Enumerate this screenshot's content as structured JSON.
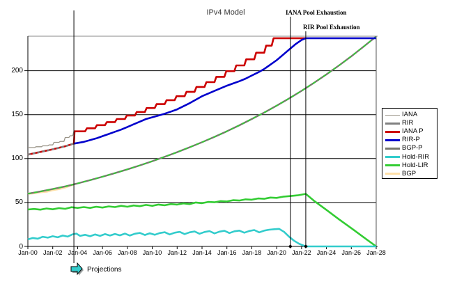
{
  "title": "IPv4 Model",
  "annotations": {
    "iana_exhaustion": "IANA Pool Exhaustion",
    "rir_exhaustion": "RIR Pool Exhaustion",
    "projections": "Projections"
  },
  "chart_data": {
    "type": "line",
    "title": "IPv4 Model",
    "xlabel": "",
    "ylabel": "",
    "x_unit": "years since Jan-2000",
    "xlim": [
      0,
      28
    ],
    "ylim": [
      0,
      239
    ],
    "grid": "horizontal",
    "legend_position": "right",
    "y_ticks": [
      0,
      50,
      100,
      150,
      200
    ],
    "x_tick_step_years": 2,
    "x_ticklabels": [
      "Jan-00",
      "Jan-02",
      "Jan-04",
      "Jan-06",
      "Jan-08",
      "Jan-10",
      "Jan-12",
      "Jan-14",
      "Jan-16",
      "Jan-18",
      "Jan-20",
      "Jan-22",
      "Jan-24",
      "Jan-26",
      "Jan-28"
    ],
    "markers": [
      {
        "id": "projections",
        "t": 3.7,
        "label_key": "projections"
      },
      {
        "id": "iana-exhaustion",
        "t": 21.1,
        "label_key": "iana_exhaustion"
      },
      {
        "id": "rir-exhaustion",
        "t": 22.34,
        "label_key": "rir_exhaustion"
      }
    ],
    "draw_order": [
      7,
      2,
      1,
      0,
      4,
      3,
      6,
      5
    ],
    "series": [
      {
        "id": "iana",
        "name": "IANA",
        "color": "#9a9488",
        "width": 1.3,
        "points": [
          [
            0,
            112.5
          ],
          [
            0.55,
            112.5
          ],
          [
            0.65,
            113.5
          ],
          [
            1.1,
            113.5
          ],
          [
            1.2,
            114.5
          ],
          [
            1.6,
            114.5
          ],
          [
            1.7,
            115.5
          ],
          [
            2.0,
            115.5
          ],
          [
            2.1,
            118.5
          ],
          [
            2.5,
            118.5
          ],
          [
            2.6,
            119.5
          ],
          [
            2.9,
            119.5
          ],
          [
            3.0,
            124
          ],
          [
            3.3,
            124
          ],
          [
            3.4,
            126
          ],
          [
            3.6,
            126
          ],
          [
            3.7,
            131
          ]
        ]
      },
      {
        "id": "rir",
        "name": "RIR",
        "color": "#808080",
        "width": 2.6,
        "dash": "4,3",
        "points": [
          [
            0,
            104.5
          ],
          [
            1,
            107.5
          ],
          [
            2,
            110.5
          ],
          [
            3,
            114
          ],
          [
            3.7,
            117
          ]
        ]
      },
      {
        "id": "iana-p",
        "name": "IANA P",
        "color": "#cc0000",
        "width": 2.6,
        "points": [
          [
            0,
            104.5
          ],
          [
            1,
            107.5
          ],
          [
            2,
            110.5
          ],
          [
            3,
            114
          ],
          [
            3.7,
            117
          ],
          [
            3.75,
            131
          ],
          [
            4.6,
            131
          ],
          [
            4.75,
            134.5
          ],
          [
            5.4,
            134.5
          ],
          [
            5.55,
            138
          ],
          [
            6.2,
            138
          ],
          [
            6.35,
            141.5
          ],
          [
            7.0,
            141.5
          ],
          [
            7.15,
            145
          ],
          [
            7.8,
            145
          ],
          [
            7.95,
            149
          ],
          [
            8.6,
            149
          ],
          [
            8.75,
            153
          ],
          [
            9.4,
            153
          ],
          [
            9.55,
            157.5
          ],
          [
            10.2,
            157.5
          ],
          [
            10.35,
            162
          ],
          [
            11.0,
            162
          ],
          [
            11.15,
            166.5
          ],
          [
            11.8,
            166.5
          ],
          [
            11.95,
            171
          ],
          [
            12.6,
            171
          ],
          [
            12.75,
            176
          ],
          [
            13.4,
            176
          ],
          [
            13.55,
            181.5
          ],
          [
            14.2,
            181.5
          ],
          [
            14.35,
            187
          ],
          [
            15.0,
            187
          ],
          [
            15.15,
            193
          ],
          [
            15.8,
            193
          ],
          [
            15.95,
            199.5
          ],
          [
            16.6,
            199.5
          ],
          [
            16.75,
            206
          ],
          [
            17.4,
            206
          ],
          [
            17.55,
            213
          ],
          [
            18.2,
            213
          ],
          [
            18.35,
            220.5
          ],
          [
            19.0,
            220.5
          ],
          [
            19.15,
            228.5
          ],
          [
            19.6,
            228.5
          ],
          [
            19.75,
            237
          ],
          [
            22.34,
            237
          ]
        ]
      },
      {
        "id": "rir-p",
        "name": "RIR-P",
        "color": "#0000cc",
        "width": 2.6,
        "points": [
          [
            3.7,
            117
          ],
          [
            4.5,
            119
          ],
          [
            5,
            121
          ],
          [
            5.5,
            123
          ],
          [
            6,
            125.5
          ],
          [
            6.5,
            128
          ],
          [
            7,
            130.5
          ],
          [
            7.5,
            133
          ],
          [
            8,
            136
          ],
          [
            8.5,
            139
          ],
          [
            9,
            142
          ],
          [
            9.5,
            145
          ],
          [
            10,
            147
          ],
          [
            10.5,
            149
          ],
          [
            11,
            151
          ],
          [
            11.5,
            153.5
          ],
          [
            12,
            156
          ],
          [
            12.5,
            159.5
          ],
          [
            13,
            163
          ],
          [
            13.5,
            167
          ],
          [
            14,
            171
          ],
          [
            14.5,
            174
          ],
          [
            15,
            177
          ],
          [
            15.5,
            180
          ],
          [
            16,
            183
          ],
          [
            16.5,
            185.5
          ],
          [
            17,
            188
          ],
          [
            17.5,
            191
          ],
          [
            18,
            194.5
          ],
          [
            18.5,
            198
          ],
          [
            19,
            202
          ],
          [
            19.5,
            207
          ],
          [
            20,
            212
          ],
          [
            20.5,
            218
          ],
          [
            21,
            224
          ],
          [
            21.5,
            230
          ],
          [
            22,
            235
          ],
          [
            22.34,
            237
          ],
          [
            28,
            237
          ]
        ]
      },
      {
        "id": "bgp-p",
        "name": "BGP-P",
        "color": "#78786e",
        "width": 2.4,
        "overlay": {
          "color": "#33cc33",
          "dash": "5,4",
          "width": 1.8
        },
        "points": [
          [
            0,
            60
          ],
          [
            1,
            62.5
          ],
          [
            2,
            65.3
          ],
          [
            3,
            68.3
          ],
          [
            3.7,
            70.7
          ],
          [
            4,
            71.7
          ],
          [
            5,
            75.4
          ],
          [
            6,
            79.3
          ],
          [
            7,
            83.4
          ],
          [
            8,
            87.7
          ],
          [
            9,
            92.2
          ],
          [
            10,
            97
          ],
          [
            11,
            102
          ],
          [
            12,
            107.3
          ],
          [
            13,
            112.8
          ],
          [
            14,
            118.6
          ],
          [
            15,
            124.7
          ],
          [
            16,
            131.1
          ],
          [
            17,
            137.9
          ],
          [
            18,
            145
          ],
          [
            19,
            152.4
          ],
          [
            20,
            160.2
          ],
          [
            21,
            168.5
          ],
          [
            22,
            177.1
          ],
          [
            23,
            186.2
          ],
          [
            24,
            195.8
          ],
          [
            25,
            205.9
          ],
          [
            26,
            216.4
          ],
          [
            27,
            227.6
          ],
          [
            28,
            239
          ]
        ]
      },
      {
        "id": "hold-rir",
        "name": "Hold-RIR",
        "color": "#33cccc",
        "width": 2.6,
        "points": [
          [
            0,
            8
          ],
          [
            0.4,
            9.6
          ],
          [
            0.8,
            8.8
          ],
          [
            1.2,
            11
          ],
          [
            1.6,
            10
          ],
          [
            2,
            11.6
          ],
          [
            2.4,
            10.4
          ],
          [
            2.8,
            12.4
          ],
          [
            3.2,
            11.2
          ],
          [
            3.6,
            13.8
          ],
          [
            3.9,
            14.6
          ],
          [
            4.2,
            12
          ],
          [
            4.6,
            13.2
          ],
          [
            5,
            11.6
          ],
          [
            5.4,
            13.6
          ],
          [
            5.8,
            12
          ],
          [
            6.2,
            14
          ],
          [
            6.6,
            12.4
          ],
          [
            7,
            14.2
          ],
          [
            7.4,
            12.6
          ],
          [
            7.8,
            14.6
          ],
          [
            8.2,
            12.4
          ],
          [
            8.6,
            14.4
          ],
          [
            9,
            15.4
          ],
          [
            9.4,
            13
          ],
          [
            9.8,
            15
          ],
          [
            10.2,
            13.2
          ],
          [
            10.6,
            15.2
          ],
          [
            11,
            16.2
          ],
          [
            11.4,
            13.6
          ],
          [
            11.8,
            15.6
          ],
          [
            12.2,
            16.6
          ],
          [
            12.6,
            14
          ],
          [
            13,
            16
          ],
          [
            13.4,
            17
          ],
          [
            13.8,
            14.4
          ],
          [
            14.2,
            16.4
          ],
          [
            14.6,
            17.4
          ],
          [
            15,
            14.8
          ],
          [
            15.4,
            16.8
          ],
          [
            15.8,
            17.8
          ],
          [
            16.2,
            15.2
          ],
          [
            16.6,
            17.2
          ],
          [
            17,
            18
          ],
          [
            17.4,
            15.6
          ],
          [
            17.8,
            17.6
          ],
          [
            18.2,
            18.6
          ],
          [
            18.6,
            16
          ],
          [
            19,
            18
          ],
          [
            19.4,
            19
          ],
          [
            19.8,
            19.6
          ],
          [
            20.2,
            20
          ],
          [
            20.6,
            16.5
          ],
          [
            21,
            11
          ],
          [
            21.4,
            6.5
          ],
          [
            21.8,
            3
          ],
          [
            22.34,
            0
          ],
          [
            28,
            0
          ]
        ]
      },
      {
        "id": "hold-lir",
        "name": "Hold-LIR",
        "color": "#33cc33",
        "width": 2.6,
        "points": [
          [
            0,
            42
          ],
          [
            0.5,
            42.6
          ],
          [
            1,
            41.8
          ],
          [
            1.5,
            43.2
          ],
          [
            2,
            42.2
          ],
          [
            2.5,
            43.6
          ],
          [
            3,
            42.8
          ],
          [
            3.5,
            44.6
          ],
          [
            4,
            43.8
          ],
          [
            4.5,
            44.8
          ],
          [
            5,
            43.8
          ],
          [
            5.5,
            45.2
          ],
          [
            6,
            44.2
          ],
          [
            6.5,
            45.6
          ],
          [
            7,
            44.8
          ],
          [
            7.5,
            46.2
          ],
          [
            8,
            45.2
          ],
          [
            8.5,
            46.6
          ],
          [
            9,
            45.8
          ],
          [
            9.5,
            47.2
          ],
          [
            10,
            46.2
          ],
          [
            10.5,
            47.6
          ],
          [
            11,
            46.8
          ],
          [
            11.5,
            48.2
          ],
          [
            12,
            47.6
          ],
          [
            12.5,
            49
          ],
          [
            13,
            48.2
          ],
          [
            13.5,
            50
          ],
          [
            14,
            49.2
          ],
          [
            14.5,
            50.6
          ],
          [
            15,
            50.2
          ],
          [
            15.5,
            51.6
          ],
          [
            16,
            51.2
          ],
          [
            16.5,
            52.6
          ],
          [
            17,
            52.2
          ],
          [
            17.5,
            53.6
          ],
          [
            18,
            53.2
          ],
          [
            18.5,
            54.6
          ],
          [
            19,
            54.2
          ],
          [
            19.5,
            55.6
          ],
          [
            20,
            55.2
          ],
          [
            20.5,
            56.6
          ],
          [
            21,
            57.2
          ],
          [
            21.7,
            58.2
          ],
          [
            22.34,
            59.8
          ],
          [
            23,
            52
          ],
          [
            24,
            41.5
          ],
          [
            25,
            31
          ],
          [
            26,
            20.8
          ],
          [
            27,
            10.4
          ],
          [
            28,
            0
          ]
        ]
      },
      {
        "id": "bgp",
        "name": "BGP",
        "color": "#ffe0a8",
        "width": 3,
        "points": [
          [
            0,
            60
          ],
          [
            0.5,
            60.6
          ],
          [
            1,
            61.8
          ],
          [
            1.5,
            62.4
          ],
          [
            2,
            64.2
          ],
          [
            2.5,
            65.4
          ],
          [
            3,
            67.2
          ],
          [
            3.7,
            70.7
          ]
        ]
      }
    ]
  }
}
